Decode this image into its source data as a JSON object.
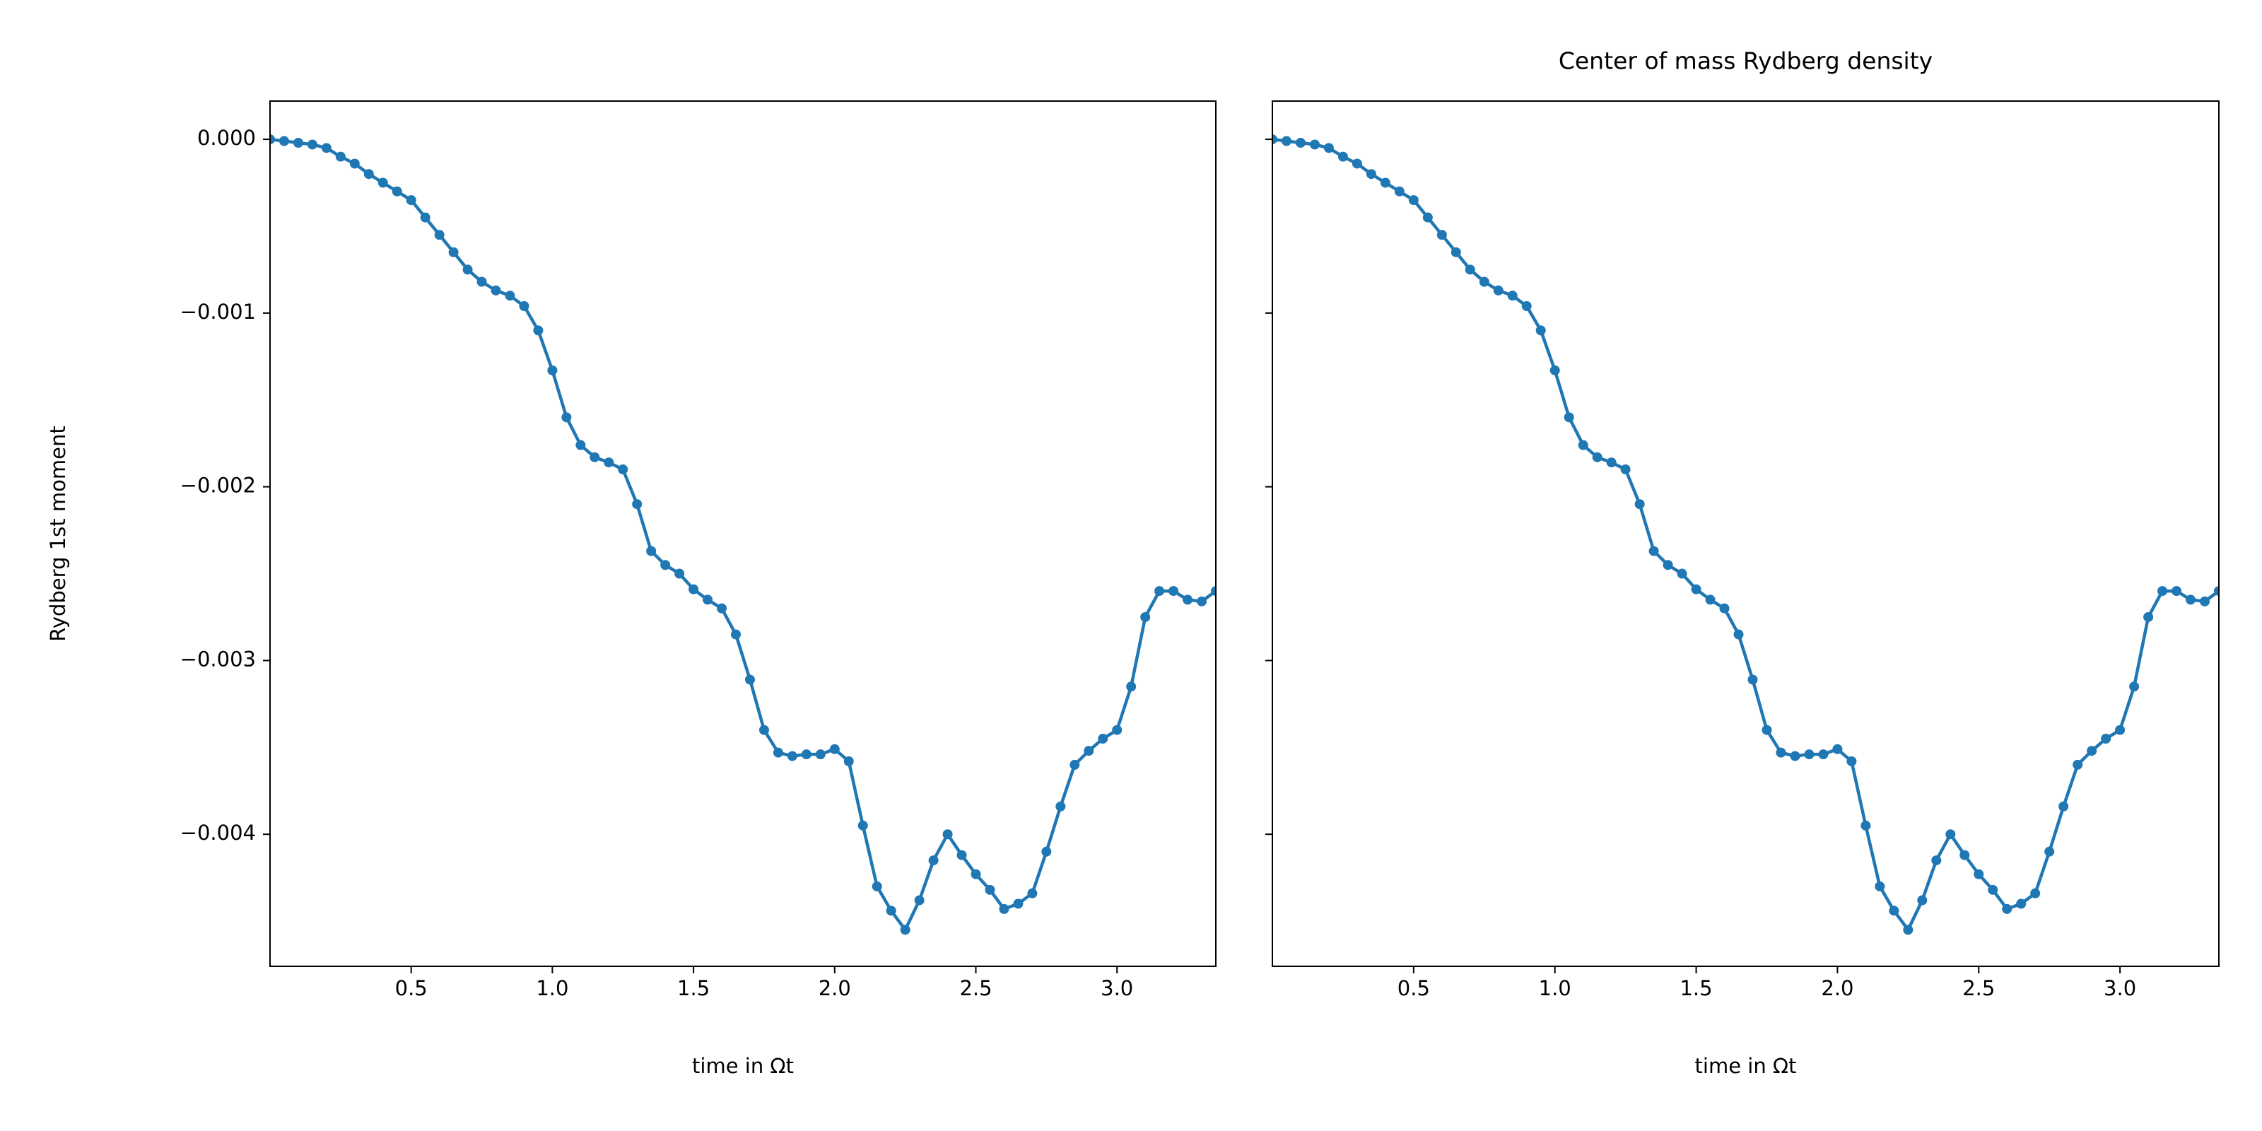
{
  "chart_data": [
    {
      "type": "line",
      "xlabel": "time in Ωt",
      "ylabel": "Rydberg 1st moment",
      "color": "#1f77b4",
      "marker": true,
      "x": [
        0,
        0.05,
        0.1,
        0.15,
        0.2,
        0.25,
        0.3,
        0.35,
        0.4,
        0.45,
        0.5,
        0.55,
        0.6,
        0.65,
        0.7,
        0.75,
        0.8,
        0.85,
        0.9,
        0.95,
        1.0,
        1.05,
        1.1,
        1.15,
        1.2,
        1.25,
        1.3,
        1.35,
        1.4,
        1.45,
        1.5,
        1.55,
        1.6,
        1.65,
        1.7,
        1.75,
        1.8,
        1.85,
        1.9,
        1.95,
        2.0,
        2.05,
        2.1,
        2.15,
        2.2,
        2.25,
        2.3,
        2.35,
        2.4,
        2.45,
        2.5,
        2.55,
        2.6,
        2.65,
        2.7,
        2.75,
        2.8,
        2.85,
        2.9,
        2.95,
        3.0,
        3.05,
        3.1,
        3.15,
        3.2,
        3.25,
        3.3,
        3.35
      ],
      "values": [
        0,
        -1e-05,
        -2e-05,
        -3e-05,
        -5e-05,
        -0.0001,
        -0.00014,
        -0.0002,
        -0.00025,
        -0.0003,
        -0.00035,
        -0.00045,
        -0.00055,
        -0.00065,
        -0.00075,
        -0.00082,
        -0.00087,
        -0.0009,
        -0.00096,
        -0.0011,
        -0.00133,
        -0.0016,
        -0.00176,
        -0.00183,
        -0.00186,
        -0.0019,
        -0.0021,
        -0.00237,
        -0.00245,
        -0.0025,
        -0.00259,
        -0.00265,
        -0.0027,
        -0.00285,
        -0.00311,
        -0.0034,
        -0.00353,
        -0.00355,
        -0.00354,
        -0.00354,
        -0.00351,
        -0.00358,
        -0.00395,
        -0.0043,
        -0.00444,
        -0.00455,
        -0.00438,
        -0.00415,
        -0.004,
        -0.00412,
        -0.00423,
        -0.00432,
        -0.00443,
        -0.0044,
        -0.00434,
        -0.0041,
        -0.00384,
        -0.0036,
        -0.00352,
        -0.00345,
        -0.0034,
        -0.00315,
        -0.00275,
        -0.0026,
        -0.0026,
        -0.00265,
        -0.00266,
        -0.0026
      ],
      "xlim": [
        0,
        3.35
      ],
      "ylim": [
        -0.00476,
        0.00022
      ],
      "xticks": [
        {
          "value": 0.5,
          "label": "0.5"
        },
        {
          "value": 1.0,
          "label": "1.0"
        },
        {
          "value": 1.5,
          "label": "1.5"
        },
        {
          "value": 2.0,
          "label": "2.0"
        },
        {
          "value": 2.5,
          "label": "2.5"
        },
        {
          "value": 3.0,
          "label": "3.0"
        }
      ],
      "yticks": [
        {
          "value": 0,
          "label": "0.000"
        },
        {
          "value": -0.001,
          "label": "−0.001"
        },
        {
          "value": -0.002,
          "label": "−0.002"
        },
        {
          "value": -0.003,
          "label": "−0.003"
        },
        {
          "value": -0.004,
          "label": "−0.004"
        }
      ]
    },
    {
      "type": "line",
      "title": "Center of mass Rydberg density",
      "xlabel": "time in Ωt",
      "color": "#1f77b4",
      "marker": true,
      "show_yticklabels": false,
      "x": [
        0,
        0.05,
        0.1,
        0.15,
        0.2,
        0.25,
        0.3,
        0.35,
        0.4,
        0.45,
        0.5,
        0.55,
        0.6,
        0.65,
        0.7,
        0.75,
        0.8,
        0.85,
        0.9,
        0.95,
        1.0,
        1.05,
        1.1,
        1.15,
        1.2,
        1.25,
        1.3,
        1.35,
        1.4,
        1.45,
        1.5,
        1.55,
        1.6,
        1.65,
        1.7,
        1.75,
        1.8,
        1.85,
        1.9,
        1.95,
        2.0,
        2.05,
        2.1,
        2.15,
        2.2,
        2.25,
        2.3,
        2.35,
        2.4,
        2.45,
        2.5,
        2.55,
        2.6,
        2.65,
        2.7,
        2.75,
        2.8,
        2.85,
        2.9,
        2.95,
        3.0,
        3.05,
        3.1,
        3.15,
        3.2,
        3.25,
        3.3,
        3.35
      ],
      "values": [
        0,
        -1e-05,
        -2e-05,
        -3e-05,
        -5e-05,
        -0.0001,
        -0.00014,
        -0.0002,
        -0.00025,
        -0.0003,
        -0.00035,
        -0.00045,
        -0.00055,
        -0.00065,
        -0.00075,
        -0.00082,
        -0.00087,
        -0.0009,
        -0.00096,
        -0.0011,
        -0.00133,
        -0.0016,
        -0.00176,
        -0.00183,
        -0.00186,
        -0.0019,
        -0.0021,
        -0.00237,
        -0.00245,
        -0.0025,
        -0.00259,
        -0.00265,
        -0.0027,
        -0.00285,
        -0.00311,
        -0.0034,
        -0.00353,
        -0.00355,
        -0.00354,
        -0.00354,
        -0.00351,
        -0.00358,
        -0.00395,
        -0.0043,
        -0.00444,
        -0.00455,
        -0.00438,
        -0.00415,
        -0.004,
        -0.00412,
        -0.00423,
        -0.00432,
        -0.00443,
        -0.0044,
        -0.00434,
        -0.0041,
        -0.00384,
        -0.0036,
        -0.00352,
        -0.00345,
        -0.0034,
        -0.00315,
        -0.00275,
        -0.0026,
        -0.0026,
        -0.00265,
        -0.00266,
        -0.0026
      ],
      "xlim": [
        0,
        3.35
      ],
      "ylim": [
        -0.00476,
        0.00022
      ],
      "xticks": [
        {
          "value": 0.5,
          "label": "0.5"
        },
        {
          "value": 1.0,
          "label": "1.0"
        },
        {
          "value": 1.5,
          "label": "1.5"
        },
        {
          "value": 2.0,
          "label": "2.0"
        },
        {
          "value": 2.5,
          "label": "2.5"
        },
        {
          "value": 3.0,
          "label": "3.0"
        }
      ],
      "yticks": [
        0,
        -0.001,
        -0.002,
        -0.003,
        -0.004
      ]
    }
  ]
}
